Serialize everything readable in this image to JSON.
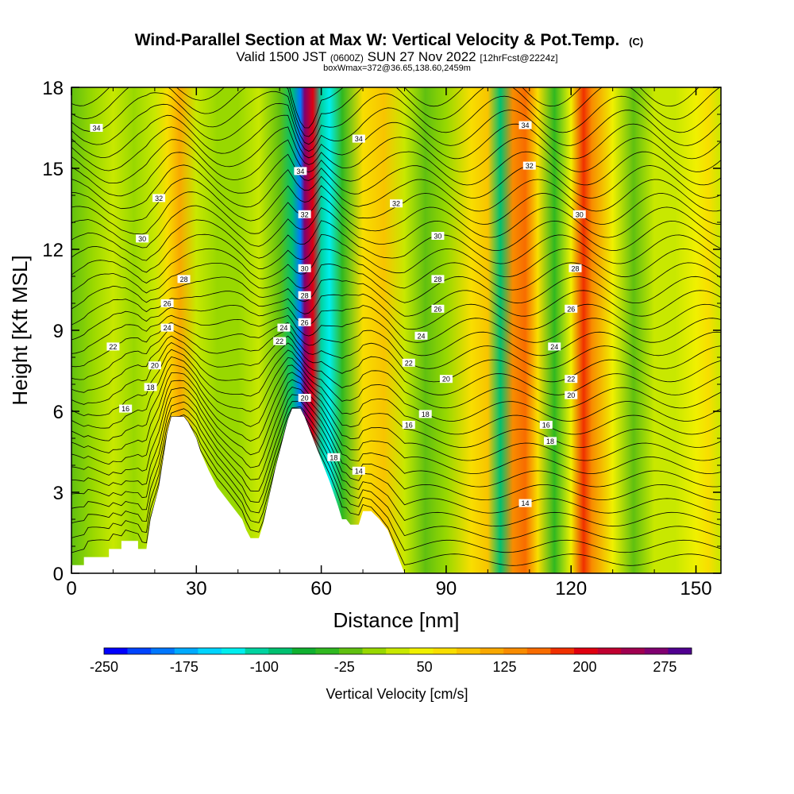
{
  "chart_data": {
    "type": "heatmap",
    "title": "Wind-Parallel Section at Max W: Vertical Velocity & Pot.Temp.",
    "title_mark": "(C)",
    "subtitle": {
      "valid": "Valid 1500 JST",
      "utc": "(0600Z)",
      "date": "SUN 27 Nov 2022",
      "fcst": "[12hrFcst@2224z]"
    },
    "box_info": "boxWmax=372@36.65,138.60,2459m",
    "xlabel": "Distance [nm]",
    "ylabel": "Height [Kft MSL]",
    "xlim": [
      0,
      156
    ],
    "ylim": [
      0,
      18
    ],
    "x_ticks": [
      "0",
      "30",
      "60",
      "90",
      "120",
      "150"
    ],
    "y_ticks": [
      "0",
      "3",
      "6",
      "9",
      "12",
      "15",
      "18"
    ],
    "colorbar": {
      "label": "Vertical Velocity [cm/s]",
      "tick_labels": [
        "-250",
        "-175",
        "-100",
        "-25",
        "50",
        "125",
        "200",
        "275"
      ],
      "colors": [
        "#0000ff",
        "#0044ff",
        "#0077ff",
        "#00aaff",
        "#00d4ff",
        "#00eeee",
        "#00d3a0",
        "#00c070",
        "#10b030",
        "#30b820",
        "#60c010",
        "#98d800",
        "#c8e800",
        "#f0f000",
        "#f8de00",
        "#f8c400",
        "#f8a800",
        "#f88c00",
        "#f86c00",
        "#f03000",
        "#e00010",
        "#c00030",
        "#a00050",
        "#800070",
        "#500090"
      ]
    },
    "terrain_kft": [
      [
        0,
        0.3
      ],
      [
        3,
        0.3
      ],
      [
        3,
        0.6
      ],
      [
        9,
        0.6
      ],
      [
        9,
        0.9
      ],
      [
        12,
        0.9
      ],
      [
        12,
        1.2
      ],
      [
        16,
        1.2
      ],
      [
        16,
        0.9
      ],
      [
        18,
        0.9
      ],
      [
        19,
        2
      ],
      [
        20,
        2.6
      ],
      [
        21,
        3.2
      ],
      [
        22,
        4.2
      ],
      [
        23,
        5.2
      ],
      [
        24,
        5.8
      ],
      [
        27,
        5.8
      ],
      [
        28,
        5.6
      ],
      [
        29,
        5.3
      ],
      [
        30,
        5
      ],
      [
        31,
        4.5
      ],
      [
        33,
        3.8
      ],
      [
        35,
        3.2
      ],
      [
        37,
        2.8
      ],
      [
        39,
        2.4
      ],
      [
        41,
        2
      ],
      [
        42,
        1.6
      ],
      [
        43,
        1.3
      ],
      [
        45,
        1.3
      ],
      [
        46,
        1.8
      ],
      [
        47,
        2.5
      ],
      [
        48,
        3.2
      ],
      [
        49,
        3.9
      ],
      [
        50,
        4.5
      ],
      [
        51,
        5.1
      ],
      [
        52,
        5.7
      ],
      [
        53,
        6.1
      ],
      [
        55,
        6.1
      ],
      [
        56,
        5.8
      ],
      [
        58,
        5
      ],
      [
        60,
        4.2
      ],
      [
        62,
        3.4
      ],
      [
        64,
        2.5
      ],
      [
        65,
        2
      ],
      [
        66,
        2
      ],
      [
        67,
        1.8
      ],
      [
        69,
        1.8
      ],
      [
        70,
        2.3
      ],
      [
        72,
        2.3
      ],
      [
        74,
        2
      ],
      [
        76,
        1.6
      ],
      [
        77,
        1.2
      ],
      [
        78,
        0.8
      ],
      [
        79,
        0.4
      ],
      [
        80,
        0
      ]
    ],
    "w_columns_cms": [
      [
        0,
        -10
      ],
      [
        5,
        5
      ],
      [
        10,
        15
      ],
      [
        15,
        0
      ],
      [
        20,
        20
      ],
      [
        23,
        70
      ],
      [
        26,
        120
      ],
      [
        30,
        30
      ],
      [
        35,
        -5
      ],
      [
        40,
        10
      ],
      [
        45,
        30
      ],
      [
        50,
        -20
      ],
      [
        53,
        -90
      ],
      [
        55,
        -190
      ],
      [
        56,
        260
      ],
      [
        58,
        210
      ],
      [
        60,
        -100
      ],
      [
        62,
        -130
      ],
      [
        65,
        -40
      ],
      [
        70,
        60
      ],
      [
        75,
        90
      ],
      [
        80,
        20
      ],
      [
        85,
        -10
      ],
      [
        90,
        10
      ],
      [
        96,
        60
      ],
      [
        100,
        90
      ],
      [
        103,
        -80
      ],
      [
        106,
        140
      ],
      [
        109,
        160
      ],
      [
        112,
        60
      ],
      [
        116,
        -50
      ],
      [
        120,
        40
      ],
      [
        123,
        180
      ],
      [
        125,
        140
      ],
      [
        130,
        40
      ],
      [
        135,
        -10
      ],
      [
        140,
        30
      ],
      [
        145,
        20
      ],
      [
        150,
        40
      ],
      [
        153,
        60
      ],
      [
        156,
        20
      ]
    ],
    "contour_labels": [
      {
        "text": "34",
        "x": 6,
        "y": 16.5
      },
      {
        "text": "34",
        "x": 55,
        "y": 14.9
      },
      {
        "text": "34",
        "x": 69,
        "y": 16.1
      },
      {
        "text": "34",
        "x": 109,
        "y": 16.6
      },
      {
        "text": "32",
        "x": 21,
        "y": 13.9
      },
      {
        "text": "32",
        "x": 56,
        "y": 13.3
      },
      {
        "text": "32",
        "x": 78,
        "y": 13.7
      },
      {
        "text": "32",
        "x": 110,
        "y": 15.1
      },
      {
        "text": "30",
        "x": 17,
        "y": 12.4
      },
      {
        "text": "30",
        "x": 56,
        "y": 11.3
      },
      {
        "text": "30",
        "x": 88,
        "y": 12.5
      },
      {
        "text": "30",
        "x": 122,
        "y": 13.3
      },
      {
        "text": "28",
        "x": 27,
        "y": 10.9
      },
      {
        "text": "28",
        "x": 56,
        "y": 10.3
      },
      {
        "text": "28",
        "x": 88,
        "y": 10.9
      },
      {
        "text": "28",
        "x": 121,
        "y": 11.3
      },
      {
        "text": "26",
        "x": 23,
        "y": 10.0
      },
      {
        "text": "26",
        "x": 56,
        "y": 9.3
      },
      {
        "text": "26",
        "x": 88,
        "y": 9.8
      },
      {
        "text": "26",
        "x": 120,
        "y": 9.8
      },
      {
        "text": "24",
        "x": 23,
        "y": 9.1
      },
      {
        "text": "24",
        "x": 51,
        "y": 9.1
      },
      {
        "text": "24",
        "x": 84,
        "y": 8.8
      },
      {
        "text": "24",
        "x": 116,
        "y": 8.4
      },
      {
        "text": "22",
        "x": 10,
        "y": 8.4
      },
      {
        "text": "22",
        "x": 50,
        "y": 8.6
      },
      {
        "text": "22",
        "x": 81,
        "y": 7.8
      },
      {
        "text": "22",
        "x": 120,
        "y": 7.2
      },
      {
        "text": "20",
        "x": 20,
        "y": 7.7
      },
      {
        "text": "20",
        "x": 56,
        "y": 6.5
      },
      {
        "text": "20",
        "x": 90,
        "y": 7.2
      },
      {
        "text": "20",
        "x": 120,
        "y": 6.6
      },
      {
        "text": "18",
        "x": 19,
        "y": 6.9
      },
      {
        "text": "18",
        "x": 85,
        "y": 5.9
      },
      {
        "text": "18",
        "x": 115,
        "y": 4.9
      },
      {
        "text": "18",
        "x": 63,
        "y": 4.3
      },
      {
        "text": "16",
        "x": 13,
        "y": 6.1
      },
      {
        "text": "16",
        "x": 81,
        "y": 5.5
      },
      {
        "text": "16",
        "x": 114,
        "y": 5.5
      },
      {
        "text": "14",
        "x": 69,
        "y": 3.8
      },
      {
        "text": "14",
        "x": 109,
        "y": 2.6
      }
    ]
  }
}
